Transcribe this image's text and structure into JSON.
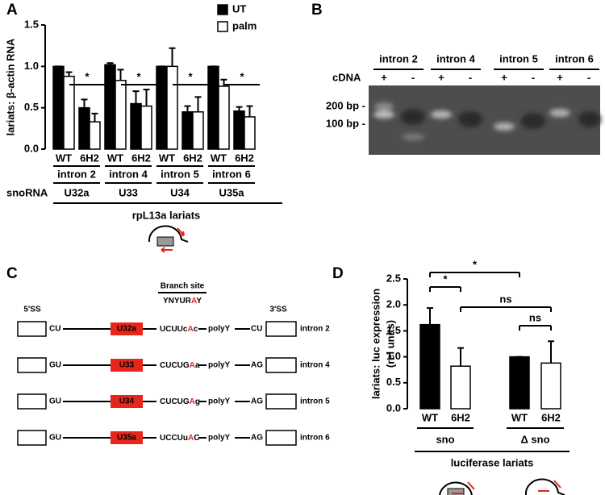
{
  "panels": [
    "A",
    "B",
    "C",
    "D"
  ],
  "chart_data": [
    {
      "type": "bar",
      "ylabel": "lariats: β-actin RNA",
      "categories": [
        "WT",
        "6H2",
        "WT",
        "6H2",
        "WT",
        "6H2",
        "WT",
        "6H2"
      ],
      "groups": [
        "intron 2",
        "intron 4",
        "intron 5",
        "intron 6"
      ],
      "row_label": "snoRNA",
      "snoRNAs": [
        "U32a",
        "U33",
        "U34",
        "U35a"
      ],
      "xlabel": "rpL13a lariats",
      "series": [
        {
          "name": "UT",
          "color": "#000000",
          "values": [
            1.0,
            0.5,
            1.02,
            0.55,
            1.0,
            0.45,
            1.0,
            0.46
          ],
          "errors": [
            0.0,
            0.1,
            0.02,
            0.15,
            0.0,
            0.07,
            0.0,
            0.05
          ]
        },
        {
          "name": "palm",
          "color": "#ffffff",
          "values": [
            0.88,
            0.33,
            0.83,
            0.52,
            1.0,
            0.45,
            0.76,
            0.39
          ],
          "errors": [
            0.05,
            0.1,
            0.13,
            0.2,
            0.22,
            0.18,
            0.08,
            0.13
          ]
        }
      ],
      "ylim": [
        0,
        1.5
      ],
      "yticks": [
        {
          "value": 0,
          "label": "0.0"
        },
        0.5,
        {
          "value": 1,
          "label": "1.0"
        },
        1.5
      ],
      "annotations": [
        "*",
        "*",
        "*",
        "*"
      ],
      "legend": "upper right"
    },
    {
      "type": "bar",
      "ylabel": [
        "lariats: luc expression",
        "(rel units)"
      ],
      "categories": [
        "WT",
        "6H2",
        "WT",
        "6H2"
      ],
      "values": [
        1.62,
        0.82,
        1.0,
        0.88
      ],
      "errors": [
        0.32,
        0.35,
        0.0,
        0.42
      ],
      "colors": [
        "#000000",
        "#ffffff",
        "#000000",
        "#ffffff"
      ],
      "groups": [
        "sno",
        "Δ sno"
      ],
      "xlabel": "luciferase lariats",
      "ylim": [
        0,
        2.5
      ],
      "yticks": [
        {
          "value": 0,
          "label": "0.0"
        },
        0.5,
        {
          "value": 1,
          "label": "1.0"
        },
        1.5,
        {
          "value": 2,
          "label": "2.0"
        },
        2.5
      ],
      "annotations": [
        "*",
        "*",
        "ns",
        "ns"
      ]
    }
  ],
  "gel": {
    "introns": [
      "intron 2",
      "intron 4",
      "intron 5",
      "intron 6"
    ],
    "cDNA_label": "cDNA",
    "lanes": [
      "+",
      "-",
      "+",
      "-",
      "+",
      "-",
      "+",
      "-"
    ],
    "markers": [
      "200 bp -",
      "100 bp -"
    ]
  },
  "diagram": {
    "left_header": "5'SS",
    "branch_header": "Branch site",
    "consensus": [
      "YNYUR",
      "A",
      "Y"
    ],
    "right_header": "3'SS",
    "rows": [
      {
        "left": "CU",
        "snoRNA": "U32a",
        "branch": [
          "UCUUc",
          "A",
          "c"
        ],
        "polyY": "polyY",
        "right": "CU",
        "intron": "intron 2"
      },
      {
        "left": "GU",
        "snoRNA": "U33",
        "branch": [
          "CUCUG",
          "A",
          "a"
        ],
        "polyY": "polyY",
        "right": "AG",
        "intron": "intron 4"
      },
      {
        "left": "GU",
        "snoRNA": "U34",
        "branch": [
          "CUCUG",
          "A",
          "g"
        ],
        "polyY": "polyY",
        "right": "AG",
        "intron": "intron 5"
      },
      {
        "left": "GU",
        "snoRNA": "U35a",
        "branch": [
          "UCCUu",
          "A",
          "C"
        ],
        "polyY": "polyY",
        "right": "AG",
        "intron": "intron 6"
      }
    ]
  }
}
